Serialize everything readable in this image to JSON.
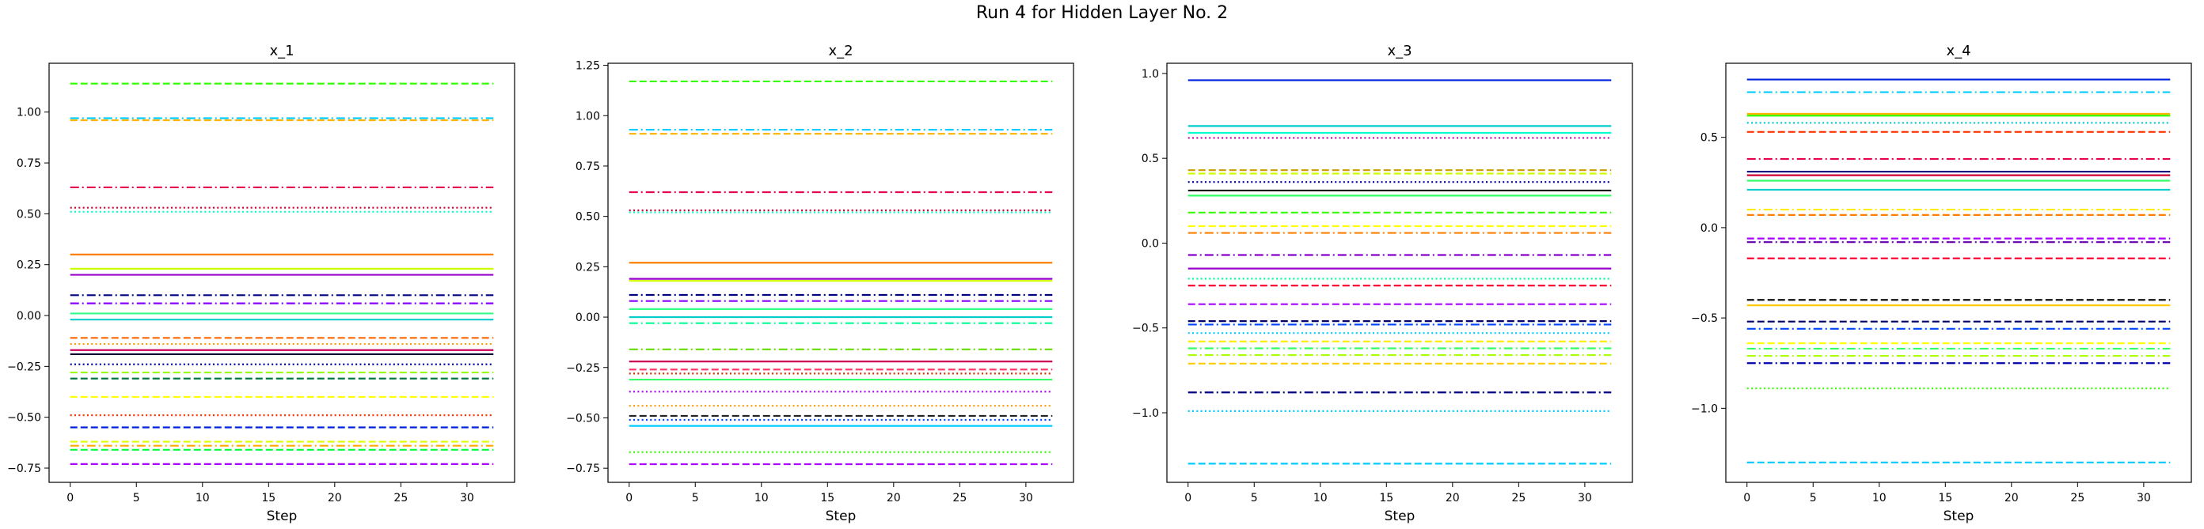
{
  "figure": {
    "title": "Run 4 for Hidden Layer No. 2"
  },
  "chart_data": [
    {
      "type": "line",
      "title": "x_1",
      "xlabel": "Step",
      "ylabel": "",
      "x_range": [
        0,
        32
      ],
      "xlim": [
        -1.6,
        33.6
      ],
      "ylim": [
        -0.82,
        1.24
      ],
      "xticks": [
        0,
        5,
        10,
        15,
        20,
        25,
        30
      ],
      "yticks": [
        -0.75,
        -0.5,
        -0.25,
        0.0,
        0.25,
        0.5,
        0.75,
        1.0
      ],
      "ytick_labels": [
        "−0.75",
        "−0.50",
        "−0.25",
        "0.00",
        "0.25",
        "0.50",
        "0.75",
        "1.00"
      ],
      "grid": false,
      "series": [
        {
          "value": 1.14,
          "color": "#33ff00",
          "style": "dashed"
        },
        {
          "value": 0.97,
          "color": "#00ccff",
          "style": "dashdot"
        },
        {
          "value": 0.96,
          "color": "#ffb300",
          "style": "dashed"
        },
        {
          "value": 0.63,
          "color": "#e6004d",
          "style": "dashdot"
        },
        {
          "value": 0.53,
          "color": "#cc0033",
          "style": "dotted"
        },
        {
          "value": 0.51,
          "color": "#00ffcc",
          "style": "dotted"
        },
        {
          "value": 0.3,
          "color": "#ff7f00",
          "style": "solid"
        },
        {
          "value": 0.23,
          "color": "#ccff00",
          "style": "solid"
        },
        {
          "value": 0.2,
          "color": "#9900cc",
          "style": "solid"
        },
        {
          "value": 0.1,
          "color": "#000080",
          "style": "dashdot"
        },
        {
          "value": 0.06,
          "color": "#8800ff",
          "style": "dashdot"
        },
        {
          "value": 0.01,
          "color": "#33ff88",
          "style": "solid"
        },
        {
          "value": -0.02,
          "color": "#00cccc",
          "style": "solid"
        },
        {
          "value": -0.11,
          "color": "#ff6600",
          "style": "dashed"
        },
        {
          "value": -0.14,
          "color": "#ff9900",
          "style": "dotted"
        },
        {
          "value": -0.17,
          "color": "#cc0055",
          "style": "solid"
        },
        {
          "value": -0.19,
          "color": "#000033",
          "style": "solid"
        },
        {
          "value": -0.24,
          "color": "#0000aa",
          "style": "dotted"
        },
        {
          "value": -0.28,
          "color": "#99ff00",
          "style": "dashed"
        },
        {
          "value": -0.31,
          "color": "#007744",
          "style": "dashed"
        },
        {
          "value": -0.4,
          "color": "#ffff00",
          "style": "dashed"
        },
        {
          "value": -0.49,
          "color": "#ff3300",
          "style": "dotted"
        },
        {
          "value": -0.55,
          "color": "#0022dd",
          "style": "dashed"
        },
        {
          "value": -0.62,
          "color": "#ddff00",
          "style": "dashed"
        },
        {
          "value": -0.64,
          "color": "#ffaa00",
          "style": "dashdot"
        },
        {
          "value": -0.66,
          "color": "#00ff33",
          "style": "dashed"
        },
        {
          "value": -0.73,
          "color": "#aa00ff",
          "style": "dashed"
        }
      ]
    },
    {
      "type": "line",
      "title": "x_2",
      "xlabel": "Step",
      "ylabel": "",
      "x_range": [
        0,
        32
      ],
      "xlim": [
        -1.6,
        33.6
      ],
      "ylim": [
        -0.82,
        1.26
      ],
      "xticks": [
        0,
        5,
        10,
        15,
        20,
        25,
        30
      ],
      "yticks": [
        -0.75,
        -0.5,
        -0.25,
        0.0,
        0.25,
        0.5,
        0.75,
        1.0,
        1.25
      ],
      "ytick_labels": [
        "−0.75",
        "−0.50",
        "−0.25",
        "0.00",
        "0.25",
        "0.50",
        "0.75",
        "1.00",
        "1.25"
      ],
      "grid": false,
      "series": [
        {
          "value": 1.17,
          "color": "#33ff00",
          "style": "dashed"
        },
        {
          "value": 0.93,
          "color": "#00ccff",
          "style": "dashdot"
        },
        {
          "value": 0.91,
          "color": "#ffb300",
          "style": "dashed"
        },
        {
          "value": 0.62,
          "color": "#e6004d",
          "style": "dashdot"
        },
        {
          "value": 0.53,
          "color": "#cc0033",
          "style": "dotted"
        },
        {
          "value": 0.52,
          "color": "#00ffcc",
          "style": "dotted"
        },
        {
          "value": 0.27,
          "color": "#ff7f00",
          "style": "solid"
        },
        {
          "value": 0.19,
          "color": "#9900cc",
          "style": "solid"
        },
        {
          "value": 0.18,
          "color": "#ccff00",
          "style": "solid"
        },
        {
          "value": 0.11,
          "color": "#000080",
          "style": "dashdot"
        },
        {
          "value": 0.08,
          "color": "#8800ff",
          "style": "dashdot"
        },
        {
          "value": 0.04,
          "color": "#33ff88",
          "style": "solid"
        },
        {
          "value": 0.0,
          "color": "#00cccc",
          "style": "solid"
        },
        {
          "value": -0.03,
          "color": "#00ff99",
          "style": "dashdot"
        },
        {
          "value": -0.16,
          "color": "#66dd00",
          "style": "dashdot"
        },
        {
          "value": -0.22,
          "color": "#cc0055",
          "style": "solid"
        },
        {
          "value": -0.26,
          "color": "#ff3366",
          "style": "dashed"
        },
        {
          "value": -0.28,
          "color": "#cc3300",
          "style": "dotted"
        },
        {
          "value": -0.31,
          "color": "#33ff66",
          "style": "solid"
        },
        {
          "value": -0.37,
          "color": "#aa00ff",
          "style": "dotted"
        },
        {
          "value": -0.44,
          "color": "#ff9900",
          "style": "dotted"
        },
        {
          "value": -0.49,
          "color": "#222222",
          "style": "dashed"
        },
        {
          "value": -0.51,
          "color": "#0044ff",
          "style": "dotted"
        },
        {
          "value": -0.54,
          "color": "#00ccff",
          "style": "solid"
        },
        {
          "value": -0.67,
          "color": "#33ff00",
          "style": "dotted"
        },
        {
          "value": -0.73,
          "color": "#aa00ff",
          "style": "dashed"
        }
      ]
    },
    {
      "type": "line",
      "title": "x_3",
      "xlabel": "Step",
      "ylabel": "",
      "x_range": [
        0,
        32
      ],
      "xlim": [
        -1.6,
        33.6
      ],
      "ylim": [
        -1.41,
        1.06
      ],
      "xticks": [
        0,
        5,
        10,
        15,
        20,
        25,
        30
      ],
      "yticks": [
        -1.0,
        -0.5,
        0.0,
        0.5,
        1.0
      ],
      "ytick_labels": [
        "−1.0",
        "−0.5",
        "0.0",
        "0.5",
        "1.0"
      ],
      "grid": false,
      "series": [
        {
          "value": 0.96,
          "color": "#0022dd",
          "style": "solid"
        },
        {
          "value": 0.69,
          "color": "#00cccc",
          "style": "solid"
        },
        {
          "value": 0.65,
          "color": "#00ffcc",
          "style": "solid"
        },
        {
          "value": 0.62,
          "color": "#cc00aa",
          "style": "dotted"
        },
        {
          "value": 0.43,
          "color": "#cc9900",
          "style": "dashed"
        },
        {
          "value": 0.41,
          "color": "#ccff00",
          "style": "dashed"
        },
        {
          "value": 0.36,
          "color": "#0000aa",
          "style": "dotted"
        },
        {
          "value": 0.31,
          "color": "#111111",
          "style": "solid"
        },
        {
          "value": 0.28,
          "color": "#33ff66",
          "style": "solid"
        },
        {
          "value": 0.18,
          "color": "#33ff00",
          "style": "dashed"
        },
        {
          "value": 0.1,
          "color": "#ffff00",
          "style": "dashed"
        },
        {
          "value": 0.06,
          "color": "#ff7f00",
          "style": "dashdot"
        },
        {
          "value": -0.07,
          "color": "#8800cc",
          "style": "dashdot"
        },
        {
          "value": -0.15,
          "color": "#9900cc",
          "style": "solid"
        },
        {
          "value": -0.21,
          "color": "#00ff99",
          "style": "dotted"
        },
        {
          "value": -0.25,
          "color": "#ff0033",
          "style": "dashed"
        },
        {
          "value": -0.36,
          "color": "#aa00ff",
          "style": "dashed"
        },
        {
          "value": -0.46,
          "color": "#000066",
          "style": "dashed"
        },
        {
          "value": -0.48,
          "color": "#0044ff",
          "style": "dashdot"
        },
        {
          "value": -0.53,
          "color": "#00ccff",
          "style": "dotted"
        },
        {
          "value": -0.58,
          "color": "#ffee00",
          "style": "dashed"
        },
        {
          "value": -0.62,
          "color": "#33ff66",
          "style": "dashdot"
        },
        {
          "value": -0.66,
          "color": "#aaff00",
          "style": "dashdot"
        },
        {
          "value": -0.71,
          "color": "#ffcc00",
          "style": "dashed"
        },
        {
          "value": -0.88,
          "color": "#000080",
          "style": "dashdot"
        },
        {
          "value": -0.99,
          "color": "#00ccff",
          "style": "dotted"
        },
        {
          "value": -1.3,
          "color": "#00ccff",
          "style": "dashed"
        }
      ]
    },
    {
      "type": "line",
      "title": "x_4",
      "xlabel": "Step",
      "ylabel": "",
      "x_range": [
        0,
        32
      ],
      "xlim": [
        -1.6,
        33.6
      ],
      "ylim": [
        -1.41,
        0.91
      ],
      "xticks": [
        0,
        5,
        10,
        15,
        20,
        25,
        30
      ],
      "yticks": [
        -1.0,
        -0.5,
        0.0,
        0.5
      ],
      "ytick_labels": [
        "−1.0",
        "−0.5",
        "0.0",
        "0.5"
      ],
      "grid": false,
      "series": [
        {
          "value": 0.82,
          "color": "#0022dd",
          "style": "solid"
        },
        {
          "value": 0.75,
          "color": "#00ccff",
          "style": "dashdot"
        },
        {
          "value": 0.63,
          "color": "#ffb300",
          "style": "solid"
        },
        {
          "value": 0.62,
          "color": "#33ff00",
          "style": "solid"
        },
        {
          "value": 0.58,
          "color": "#00cccc",
          "style": "dotted"
        },
        {
          "value": 0.53,
          "color": "#ff3300",
          "style": "dashed"
        },
        {
          "value": 0.38,
          "color": "#e6004d",
          "style": "dashdot"
        },
        {
          "value": 0.31,
          "color": "#000080",
          "style": "solid"
        },
        {
          "value": 0.29,
          "color": "#cc0033",
          "style": "solid"
        },
        {
          "value": 0.26,
          "color": "#33ff66",
          "style": "solid"
        },
        {
          "value": 0.21,
          "color": "#00cccc",
          "style": "solid"
        },
        {
          "value": 0.1,
          "color": "#ffee00",
          "style": "dashdot"
        },
        {
          "value": 0.07,
          "color": "#ff7f00",
          "style": "dashed"
        },
        {
          "value": -0.06,
          "color": "#aa00ff",
          "style": "dashed"
        },
        {
          "value": -0.08,
          "color": "#6600aa",
          "style": "dashdot"
        },
        {
          "value": -0.17,
          "color": "#ff0033",
          "style": "dashed"
        },
        {
          "value": -0.4,
          "color": "#111111",
          "style": "dashed"
        },
        {
          "value": -0.43,
          "color": "#ffcc00",
          "style": "solid"
        },
        {
          "value": -0.52,
          "color": "#000066",
          "style": "dashed"
        },
        {
          "value": -0.56,
          "color": "#0044ff",
          "style": "dashdot"
        },
        {
          "value": -0.64,
          "color": "#ffff00",
          "style": "dashed"
        },
        {
          "value": -0.67,
          "color": "#33ff66",
          "style": "dashdot"
        },
        {
          "value": -0.71,
          "color": "#aaff00",
          "style": "dashdot"
        },
        {
          "value": -0.75,
          "color": "#0000aa",
          "style": "dashdot"
        },
        {
          "value": -0.89,
          "color": "#33ff00",
          "style": "dotted"
        },
        {
          "value": -1.3,
          "color": "#00ccff",
          "style": "dashed"
        }
      ]
    }
  ]
}
